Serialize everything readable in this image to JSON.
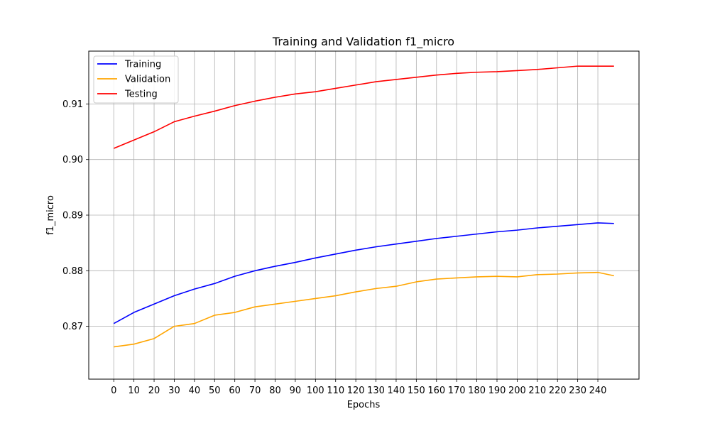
{
  "chart_data": {
    "type": "line",
    "title": "Training and Validation f1_micro",
    "xlabel": "Epochs",
    "ylabel": "f1_micro",
    "xlim": [
      -12.4,
      260.4
    ],
    "ylim": [
      0.8605,
      0.9195
    ],
    "xticks": [
      0,
      10,
      20,
      30,
      40,
      50,
      60,
      70,
      80,
      90,
      100,
      110,
      120,
      130,
      140,
      150,
      160,
      170,
      180,
      190,
      200,
      210,
      220,
      230,
      240
    ],
    "yticks": [
      0.87,
      0.88,
      0.89,
      0.9,
      0.91
    ],
    "ytick_labels": [
      "0.87",
      "0.88",
      "0.89",
      "0.90",
      "0.91"
    ],
    "grid": true,
    "legend_position": "top-left",
    "x": [
      0,
      10,
      20,
      30,
      40,
      50,
      60,
      70,
      80,
      90,
      100,
      110,
      120,
      130,
      140,
      150,
      160,
      170,
      180,
      190,
      200,
      210,
      220,
      230,
      240,
      248
    ],
    "series": [
      {
        "name": "Training",
        "color": "#0000ff",
        "values": [
          0.8705,
          0.8725,
          0.874,
          0.8755,
          0.8767,
          0.8777,
          0.879,
          0.88,
          0.8808,
          0.8815,
          0.8823,
          0.883,
          0.8837,
          0.8843,
          0.8848,
          0.8853,
          0.8858,
          0.8862,
          0.8866,
          0.887,
          0.8873,
          0.8877,
          0.888,
          0.8883,
          0.8886,
          0.8885
        ]
      },
      {
        "name": "Validation",
        "color": "#ffa500",
        "values": [
          0.8663,
          0.8668,
          0.8678,
          0.87,
          0.8705,
          0.872,
          0.8725,
          0.8735,
          0.874,
          0.8745,
          0.875,
          0.8755,
          0.8762,
          0.8768,
          0.8772,
          0.878,
          0.8785,
          0.8787,
          0.8789,
          0.879,
          0.8789,
          0.8793,
          0.8794,
          0.8796,
          0.8797,
          0.8791
        ]
      },
      {
        "name": "Testing",
        "color": "#ff0000",
        "values": [
          0.902,
          0.9035,
          0.905,
          0.9068,
          0.9078,
          0.9087,
          0.9097,
          0.9105,
          0.9112,
          0.9118,
          0.9122,
          0.9128,
          0.9134,
          0.914,
          0.9144,
          0.9148,
          0.9152,
          0.9155,
          0.9157,
          0.9158,
          0.916,
          0.9162,
          0.9165,
          0.9168,
          0.9168,
          0.9168
        ]
      }
    ]
  }
}
